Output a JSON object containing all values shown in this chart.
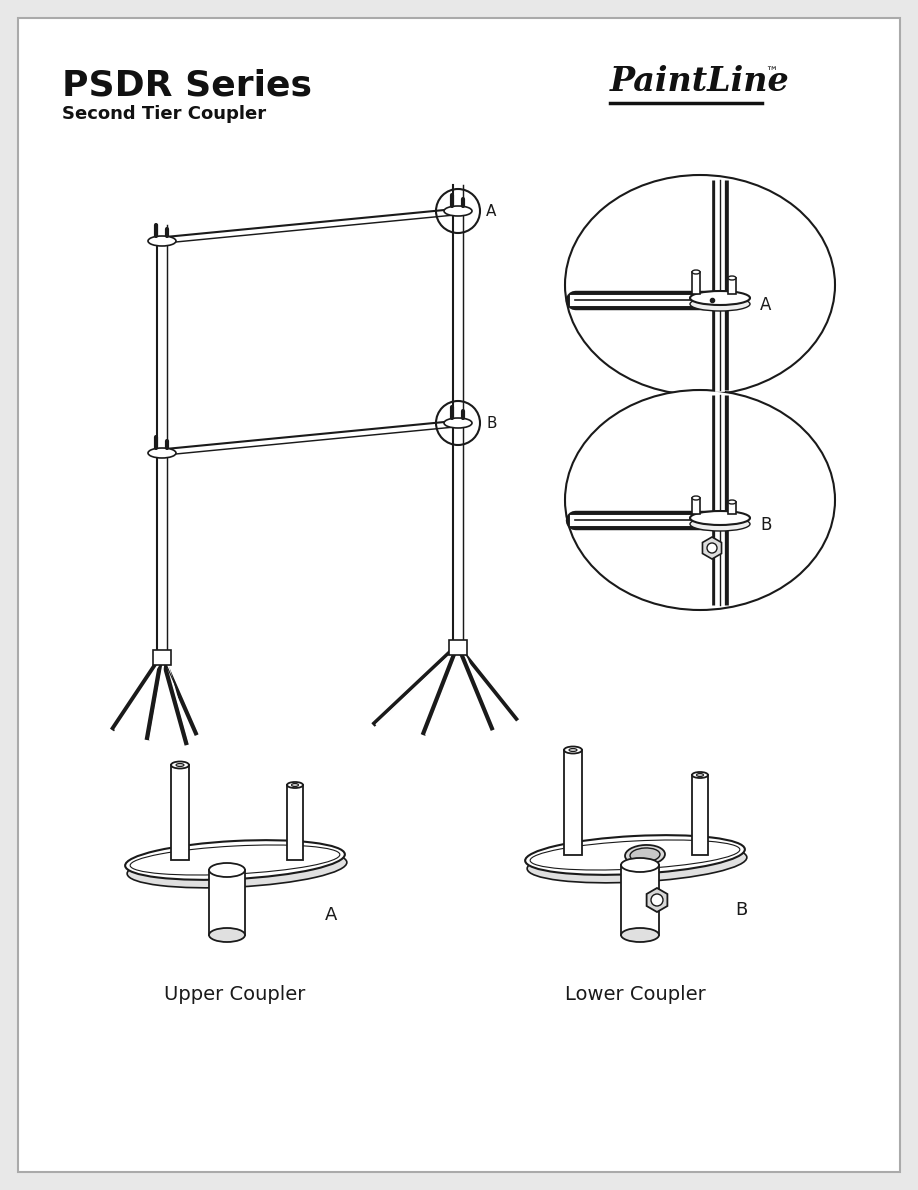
{
  "title": "PSDR Series",
  "subtitle": "Second Tier Coupler",
  "brand": "PaintLine",
  "background_color": "#e8e8e8",
  "page_bg": "#ffffff",
  "line_color": "#1a1a1a",
  "label_A": "A",
  "label_B": "B",
  "upper_coupler_label": "Upper Coupler",
  "lower_coupler_label": "Lower Coupler"
}
